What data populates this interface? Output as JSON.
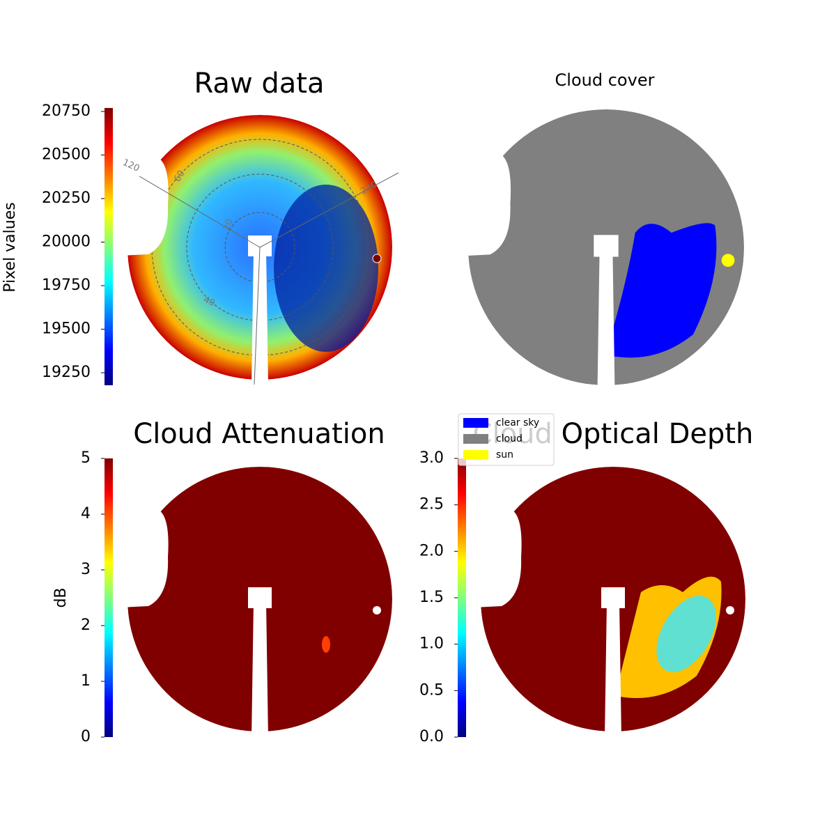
{
  "chart_data": [
    {
      "type": "image",
      "title": "Raw data",
      "colorbar_label": "Pixel values",
      "colormap": "jet",
      "ylim": [
        19178,
        20770
      ],
      "yticks": [
        19250,
        19500,
        19750,
        20000,
        20250,
        20500,
        20750
      ],
      "annotations": [
        "120",
        "60",
        "240",
        "20",
        "40"
      ]
    },
    {
      "type": "image",
      "title": "Cloud cover",
      "categories": [
        "clear sky",
        "cloud",
        "sun"
      ],
      "colors": [
        "#0000ff",
        "#808080",
        "#ffff00"
      ]
    },
    {
      "type": "image",
      "title": "Cloud Attenuation",
      "colorbar_label": "dB",
      "colormap": "jet",
      "ylim": [
        0,
        5
      ],
      "yticks": [
        0,
        1,
        2,
        3,
        4,
        5
      ]
    },
    {
      "type": "image",
      "title": "Cloud Optical Depth",
      "colormap": "jet",
      "ylim": [
        0,
        3
      ],
      "yticks": [
        {
          "value": 0,
          "label": "0.0"
        },
        {
          "value": 0.5,
          "label": "0.5"
        },
        {
          "value": 1,
          "label": "1.0"
        },
        {
          "value": 1.5,
          "label": "1.5"
        },
        {
          "value": 2,
          "label": "2.0"
        },
        {
          "value": 2.5,
          "label": "2.5"
        },
        {
          "value": 3,
          "label": "3.0"
        }
      ]
    }
  ]
}
